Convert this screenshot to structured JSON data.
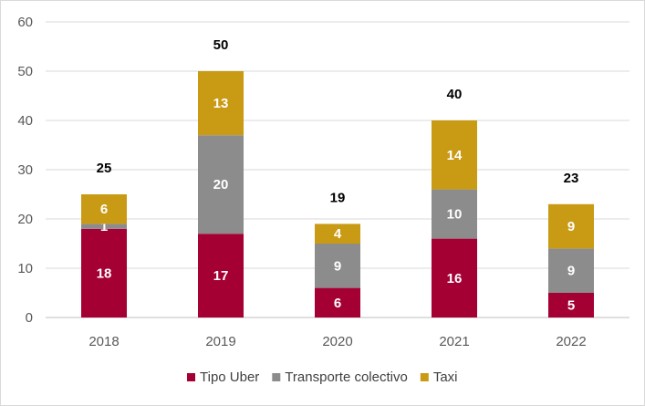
{
  "chart_data": {
    "type": "bar",
    "stacked": true,
    "title": "",
    "xlabel": "",
    "ylabel": "",
    "ylim": [
      0,
      60
    ],
    "yticks": [
      0,
      10,
      20,
      30,
      40,
      50,
      60
    ],
    "grid": true,
    "legend_position": "bottom",
    "categories": [
      "2018",
      "2019",
      "2020",
      "2021",
      "2022"
    ],
    "series": [
      {
        "name": "Tipo Uber",
        "color": "#a50034",
        "values": [
          18,
          17,
          6,
          16,
          5
        ]
      },
      {
        "name": "Transporte colectivo",
        "color": "#8c8c8c",
        "values": [
          1,
          20,
          9,
          10,
          9
        ]
      },
      {
        "name": "Taxi",
        "color": "#c99a14",
        "values": [
          6,
          13,
          4,
          14,
          9
        ]
      }
    ],
    "totals": [
      25,
      50,
      19,
      40,
      23
    ]
  }
}
